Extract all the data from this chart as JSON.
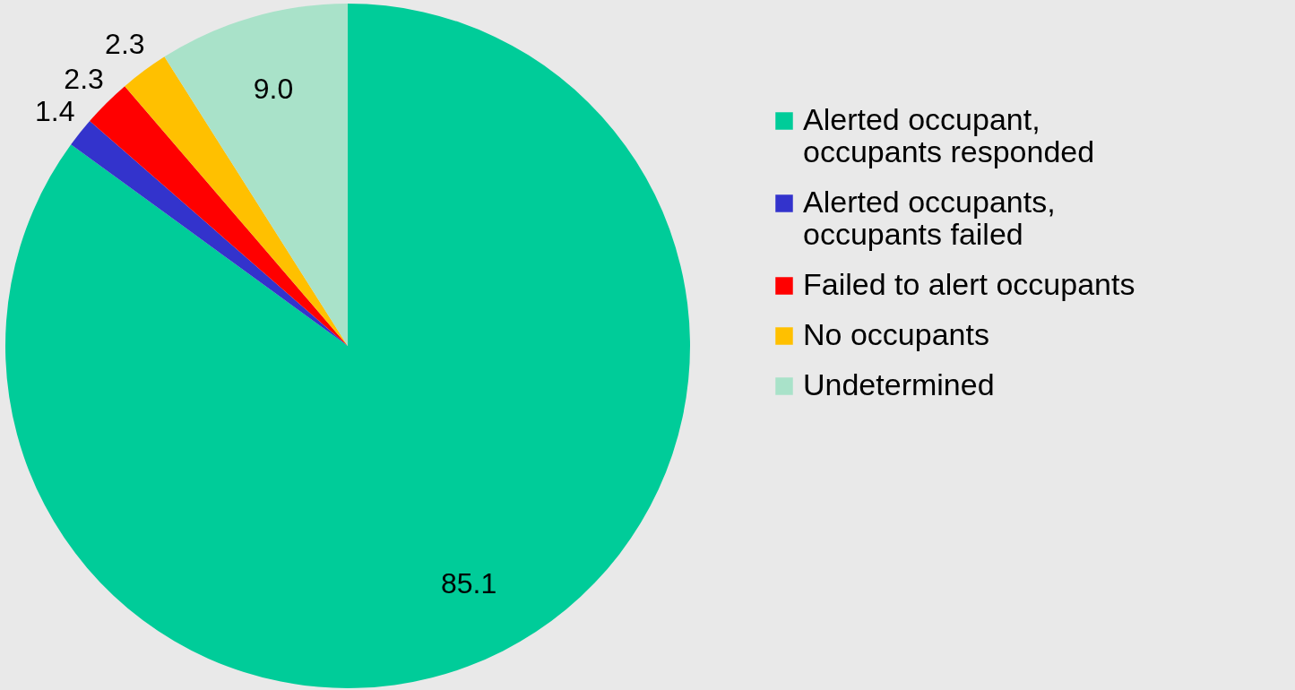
{
  "chart_data": {
    "type": "pie",
    "categories": [
      "Alerted occupant, occupants responded",
      "Alerted occupants, occupants failed",
      "Failed to alert occupants",
      "No occupants",
      "Undetermined"
    ],
    "values": [
      85.1,
      1.4,
      2.3,
      2.3,
      9.0
    ],
    "colors": [
      "#00cc99",
      "#3333cc",
      "#ff0000",
      "#ffc000",
      "#a9e2c9"
    ],
    "value_labels": [
      "85.1",
      "1.4",
      "2.3",
      "2.3",
      "9.0"
    ],
    "legend": "right"
  }
}
